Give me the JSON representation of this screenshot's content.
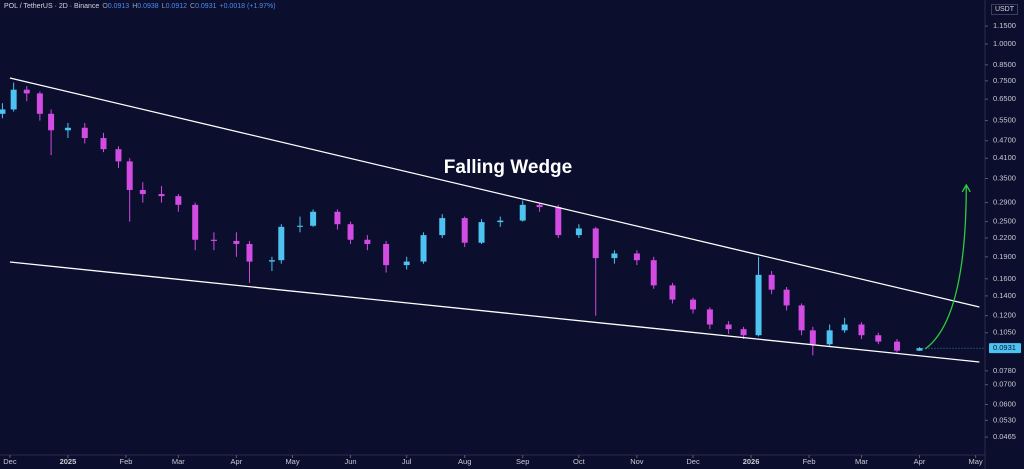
{
  "header": {
    "symbol": "POL / TetherUS · 2D · Binance",
    "ohlc": [
      {
        "key": "O",
        "value": "0.0913"
      },
      {
        "key": "H",
        "value": "0.0938"
      },
      {
        "key": "L",
        "value": "0.0912"
      },
      {
        "key": "C",
        "value": "0.0931"
      }
    ],
    "change": "+0.0018 (+1.97%)",
    "currency": "USDT"
  },
  "chart_data": {
    "type": "candlestick",
    "log_scale": true,
    "annotation": "Falling Wedge",
    "up_color": "#4cc3f0",
    "down_color": "#d24be2",
    "x": [
      -4,
      2,
      9,
      16,
      22,
      31,
      40,
      50,
      58,
      64,
      71,
      81,
      90,
      99,
      109,
      121,
      128,
      140,
      145,
      155,
      162,
      175,
      182,
      191,
      201,
      212,
      221,
      231,
      243,
      252,
      262,
      274,
      283,
      293,
      304,
      313,
      323,
      335,
      344,
      354,
      365,
      374,
      384,
      392,
      400,
      407,
      415,
      423,
      429,
      438,
      446,
      455,
      464,
      474,
      486
    ],
    "open": [
      0.58,
      0.6,
      0.7,
      0.68,
      0.58,
      0.51,
      0.52,
      0.48,
      0.44,
      0.4,
      0.32,
      0.31,
      0.305,
      0.285,
      0.217,
      0.215,
      0.21,
      0.183,
      0.185,
      0.24,
      0.242,
      0.27,
      0.245,
      0.217,
      0.21,
      0.178,
      0.183,
      0.225,
      0.257,
      0.212,
      0.249,
      0.252,
      0.285,
      0.28,
      0.225,
      0.237,
      0.188,
      0.195,
      0.185,
      0.152,
      0.136,
      0.126,
      0.112,
      0.108,
      0.103,
      0.165,
      0.147,
      0.13,
      0.107,
      0.096,
      0.107,
      0.112,
      0.103,
      0.098,
      0.0913
    ],
    "high": [
      0.63,
      0.74,
      0.72,
      0.69,
      0.6,
      0.54,
      0.54,
      0.5,
      0.45,
      0.41,
      0.34,
      0.33,
      0.31,
      0.29,
      0.23,
      0.23,
      0.215,
      0.19,
      0.245,
      0.26,
      0.275,
      0.275,
      0.25,
      0.225,
      0.215,
      0.19,
      0.23,
      0.265,
      0.26,
      0.255,
      0.26,
      0.295,
      0.29,
      0.285,
      0.245,
      0.24,
      0.2,
      0.2,
      0.19,
      0.155,
      0.138,
      0.128,
      0.115,
      0.11,
      0.19,
      0.17,
      0.15,
      0.132,
      0.11,
      0.112,
      0.118,
      0.114,
      0.105,
      0.1,
      0.0938
    ],
    "low": [
      0.56,
      0.59,
      0.64,
      0.55,
      0.42,
      0.48,
      0.46,
      0.43,
      0.38,
      0.25,
      0.29,
      0.29,
      0.27,
      0.2,
      0.2,
      0.19,
      0.155,
      0.17,
      0.18,
      0.23,
      0.24,
      0.235,
      0.21,
      0.2,
      0.168,
      0.172,
      0.18,
      0.22,
      0.205,
      0.21,
      0.24,
      0.25,
      0.27,
      0.22,
      0.22,
      0.12,
      0.18,
      0.178,
      0.148,
      0.132,
      0.122,
      0.108,
      0.104,
      0.1,
      0.102,
      0.142,
      0.125,
      0.103,
      0.088,
      0.094,
      0.105,
      0.1,
      0.096,
      0.09,
      0.0912
    ],
    "close": [
      0.6,
      0.7,
      0.68,
      0.58,
      0.51,
      0.52,
      0.48,
      0.44,
      0.4,
      0.32,
      0.31,
      0.305,
      0.285,
      0.217,
      0.215,
      0.21,
      0.183,
      0.185,
      0.24,
      0.242,
      0.27,
      0.245,
      0.217,
      0.21,
      0.178,
      0.183,
      0.225,
      0.257,
      0.212,
      0.249,
      0.252,
      0.285,
      0.28,
      0.225,
      0.237,
      0.188,
      0.195,
      0.185,
      0.152,
      0.136,
      0.126,
      0.112,
      0.108,
      0.103,
      0.165,
      0.147,
      0.13,
      0.107,
      0.096,
      0.107,
      0.112,
      0.103,
      0.098,
      0.0913,
      0.0931
    ],
    "trendlines": [
      {
        "color": "#ffffff",
        "x": [
          0,
          518
        ],
        "y": [
          0.767,
          0.1284
        ]
      },
      {
        "color": "#ffffff",
        "x": [
          0,
          518
        ],
        "y": [
          0.1824,
          0.0836
        ]
      }
    ],
    "arrow": {
      "color": "#2ecc40",
      "x": [
        489,
        511
      ],
      "y": [
        0.0925,
        0.333
      ]
    },
    "last_price": {
      "value": 0.0931,
      "label": "0.0931"
    },
    "xlim": [
      -5.3,
      521
    ],
    "ylim": [
      0.0414,
      1.225
    ],
    "xticks": [
      {
        "value": 0,
        "label": "Dec"
      },
      {
        "value": 31,
        "label": "2025"
      },
      {
        "value": 62,
        "label": "Feb"
      },
      {
        "value": 90,
        "label": "Mar"
      },
      {
        "value": 121,
        "label": "Apr"
      },
      {
        "value": 151,
        "label": "May"
      },
      {
        "value": 182,
        "label": "Jun"
      },
      {
        "value": 212,
        "label": "Jul"
      },
      {
        "value": 243,
        "label": "Aug"
      },
      {
        "value": 274,
        "label": "Sep"
      },
      {
        "value": 304,
        "label": "Oct"
      },
      {
        "value": 335,
        "label": "Nov"
      },
      {
        "value": 365,
        "label": "Dec"
      },
      {
        "value": 396,
        "label": "2026"
      },
      {
        "value": 427,
        "label": "Feb"
      },
      {
        "value": 455,
        "label": "Mar"
      },
      {
        "value": 486,
        "label": "Apr"
      },
      {
        "value": 516,
        "label": "May"
      }
    ],
    "yticks": [
      {
        "value": 1.15,
        "label": "1.1500"
      },
      {
        "value": 1,
        "label": "1.0000"
      },
      {
        "value": 0.85,
        "label": "0.8500"
      },
      {
        "value": 0.75,
        "label": "0.7500"
      },
      {
        "value": 0.65,
        "label": "0.6500"
      },
      {
        "value": 0.55,
        "label": "0.5500"
      },
      {
        "value": 0.47,
        "label": "0.4700"
      },
      {
        "value": 0.41,
        "label": "0.4100"
      },
      {
        "value": 0.35,
        "label": "0.3500"
      },
      {
        "value": 0.29,
        "label": "0.2900"
      },
      {
        "value": 0.25,
        "label": "0.2500"
      },
      {
        "value": 0.22,
        "label": "0.2200"
      },
      {
        "value": 0.19,
        "label": "0.1900"
      },
      {
        "value": 0.16,
        "label": "0.1600"
      },
      {
        "value": 0.14,
        "label": "0.1400"
      },
      {
        "value": 0.12,
        "label": "0.1200"
      },
      {
        "value": 0.105,
        "label": "0.1050"
      },
      {
        "value": 0.078,
        "label": "0.0780"
      },
      {
        "value": 0.07,
        "label": "0.0700"
      },
      {
        "value": 0.06,
        "label": "0.0600"
      },
      {
        "value": 0.053,
        "label": "0.0530"
      },
      {
        "value": 0.0465,
        "label": "0.0465"
      }
    ]
  }
}
